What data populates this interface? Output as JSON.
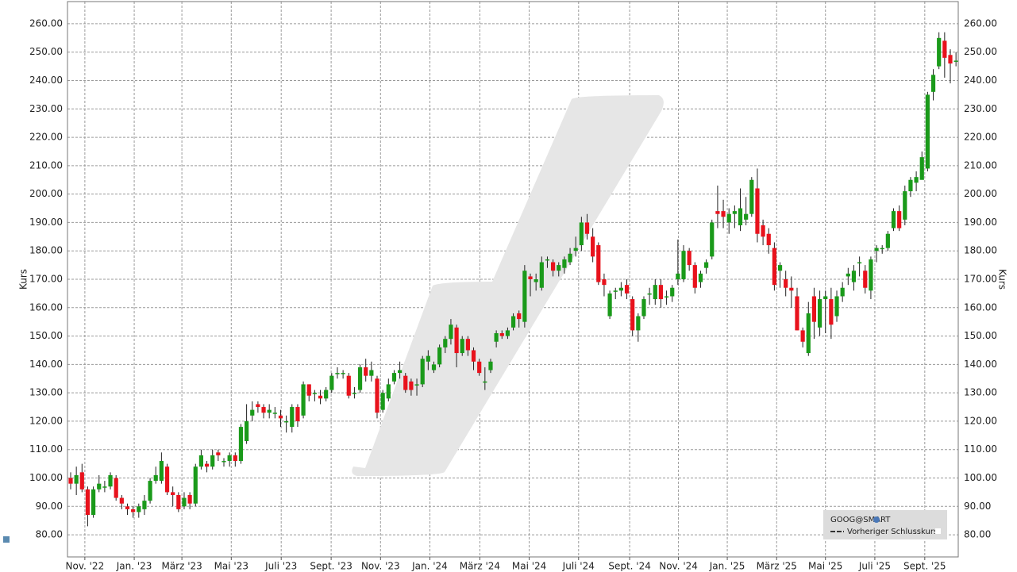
{
  "chart_data": {
    "type": "candlestick",
    "y_label": "Kurs",
    "up_color": "#1a9a1a",
    "down_color": "#e8121c",
    "grid": true,
    "legend": {
      "title": "GOOG@SMART",
      "items": [
        "Vorheriger Schlusskurs"
      ]
    },
    "ylim": [
      72.2,
      267.8
    ],
    "yticks": [
      {
        "value": 80,
        "label": "80.00"
      },
      {
        "value": 90,
        "label": "90.00"
      },
      {
        "value": 100,
        "label": "100.00"
      },
      {
        "value": 110,
        "label": "110.00"
      },
      {
        "value": 120,
        "label": "120.00"
      },
      {
        "value": 130,
        "label": "130.00"
      },
      {
        "value": 140,
        "label": "140.00"
      },
      {
        "value": 150,
        "label": "150.00"
      },
      {
        "value": 160,
        "label": "160.00"
      },
      {
        "value": 170,
        "label": "170.00"
      },
      {
        "value": 180,
        "label": "180.00"
      },
      {
        "value": 190,
        "label": "190.00"
      },
      {
        "value": 200,
        "label": "200.00"
      },
      {
        "value": 210,
        "label": "210.00"
      },
      {
        "value": 220,
        "label": "220.00"
      },
      {
        "value": 230,
        "label": "230.00"
      },
      {
        "value": 240,
        "label": "240.00"
      },
      {
        "value": 250,
        "label": "250.00"
      },
      {
        "value": 260,
        "label": "260.00"
      }
    ],
    "xlim": [
      -0.56,
      156.4
    ],
    "xticks": [
      {
        "value": 2.5,
        "label": "Nov. '22"
      },
      {
        "value": 11.2,
        "label": "Jan. '23"
      },
      {
        "value": 19.6,
        "label": "März '23"
      },
      {
        "value": 28.3,
        "label": "Mai '23"
      },
      {
        "value": 37.1,
        "label": "Juli '23"
      },
      {
        "value": 45.9,
        "label": "Sept. '23"
      },
      {
        "value": 54.6,
        "label": "Nov. '23"
      },
      {
        "value": 63.3,
        "label": "Jan. '24"
      },
      {
        "value": 72.1,
        "label": "März '24"
      },
      {
        "value": 80.8,
        "label": "Mai '24"
      },
      {
        "value": 89.5,
        "label": "Juli '24"
      },
      {
        "value": 98.5,
        "label": "Sept. '24"
      },
      {
        "value": 107.1,
        "label": "Nov. '24"
      },
      {
        "value": 115.7,
        "label": "Jan. '25"
      },
      {
        "value": 124.4,
        "label": "März '25"
      },
      {
        "value": 133,
        "label": "Mai '25"
      },
      {
        "value": 141.7,
        "label": "Juli '25"
      },
      {
        "value": 150.5,
        "label": "Sept. '25"
      }
    ],
    "x": [
      0,
      1,
      2,
      3,
      4,
      5,
      6,
      7,
      8,
      9,
      10,
      11,
      12,
      13,
      14,
      15,
      16,
      17,
      18,
      19,
      20,
      21,
      22,
      23,
      24,
      25,
      26,
      27,
      28,
      29,
      30,
      31,
      32,
      33,
      34,
      35,
      36,
      37,
      38,
      39,
      40,
      41,
      42,
      43,
      44,
      45,
      46,
      47,
      48,
      49,
      50,
      51,
      52,
      53,
      54,
      55,
      56,
      57,
      58,
      59,
      60,
      61,
      62,
      63,
      64,
      65,
      66,
      67,
      68,
      69,
      70,
      71,
      72,
      73,
      74,
      75,
      76,
      77,
      78,
      79,
      80,
      81,
      82,
      83,
      84,
      85,
      86,
      87,
      88,
      89,
      90,
      91,
      92,
      93,
      94,
      95,
      96,
      97,
      98,
      99,
      100,
      101,
      102,
      103,
      104,
      105,
      106,
      107,
      108,
      109,
      110,
      111,
      112,
      113,
      114,
      115,
      116,
      117,
      118,
      119,
      120,
      121,
      122,
      123,
      124,
      125,
      126,
      127,
      128,
      129,
      130,
      131,
      132,
      133,
      134,
      135,
      136,
      137,
      138,
      139,
      140,
      141,
      142,
      143,
      144,
      145,
      146,
      147,
      148,
      149,
      150,
      151,
      152,
      153,
      154,
      155,
      156
    ],
    "open": [
      100,
      98,
      102,
      96,
      87,
      96,
      97,
      97,
      100,
      93,
      90,
      89,
      88,
      89,
      92,
      99,
      99,
      104,
      95,
      94,
      90,
      94,
      91,
      104,
      105,
      104,
      109,
      106,
      106,
      108,
      106,
      113,
      122,
      126,
      125,
      123,
      123,
      122,
      120,
      118,
      125,
      122,
      133,
      130,
      129,
      128,
      131,
      137,
      137,
      136,
      130,
      131,
      139,
      136,
      135,
      124,
      128,
      134,
      137,
      136,
      134,
      133,
      133,
      141,
      138,
      140,
      146,
      149,
      153,
      144,
      149,
      145,
      141,
      134,
      138,
      148,
      151,
      150,
      153,
      158,
      155,
      171,
      169,
      167,
      177,
      176,
      173,
      174,
      176,
      180,
      182,
      190,
      185,
      182,
      170,
      157,
      166,
      166,
      168,
      163,
      152,
      157,
      165,
      163,
      168,
      164,
      164,
      170,
      170,
      180,
      175,
      169,
      174,
      178,
      194,
      194,
      190,
      193,
      189,
      191,
      193,
      202,
      189,
      186,
      181,
      173,
      170,
      167,
      164,
      152,
      144,
      164,
      153,
      163,
      163,
      157,
      164,
      171,
      169,
      176,
      173,
      166,
      180,
      181,
      181,
      188,
      194,
      191,
      201,
      204,
      205,
      209,
      236,
      245,
      254,
      249,
      247
    ],
    "high": [
      102,
      104,
      105,
      97,
      97,
      101,
      99,
      102,
      101,
      94,
      91,
      90,
      91,
      94,
      100,
      104,
      109,
      105,
      97,
      95,
      95,
      95,
      105,
      110,
      106,
      110,
      110,
      107,
      109,
      109,
      119,
      126,
      127,
      127,
      126,
      126,
      125,
      124,
      122,
      126,
      126,
      134,
      133,
      131,
      131,
      132,
      137,
      139,
      138,
      137,
      132,
      140,
      142,
      141,
      136,
      131,
      135,
      138,
      141,
      137,
      135,
      135,
      143,
      145,
      141,
      147,
      150,
      156,
      154,
      150,
      150,
      146,
      142,
      139,
      142,
      152,
      152,
      153,
      158,
      159,
      175,
      172,
      172,
      178,
      178,
      177,
      176,
      178,
      181,
      185,
      192,
      193,
      188,
      183,
      172,
      166,
      167,
      169,
      170,
      164,
      158,
      164,
      167,
      170,
      170,
      166,
      168,
      184,
      182,
      181,
      176,
      173,
      177,
      191,
      203,
      198,
      195,
      196,
      202,
      199,
      206,
      209,
      191,
      188,
      183,
      176,
      173,
      171,
      167,
      153,
      162,
      167,
      166,
      166,
      167,
      166,
      169,
      174,
      175,
      178,
      175,
      178,
      182,
      182,
      187,
      195,
      196,
      203,
      206,
      208,
      215,
      236,
      244,
      257,
      257,
      251,
      250
    ],
    "low": [
      96,
      94,
      95,
      83,
      86,
      95,
      95,
      96,
      92,
      89,
      87,
      86,
      86,
      87,
      91,
      98,
      98,
      94,
      90,
      88,
      89,
      89,
      90,
      103,
      102,
      103,
      106,
      104,
      104,
      104,
      105,
      112,
      120,
      123,
      121,
      121,
      121,
      118,
      116,
      116,
      118,
      121,
      127,
      127,
      126,
      127,
      130,
      135,
      135,
      128,
      128,
      130,
      134,
      134,
      121,
      123,
      127,
      133,
      135,
      130,
      129,
      129,
      132,
      138,
      137,
      139,
      144,
      147,
      139,
      143,
      143,
      138,
      136,
      131,
      137,
      146,
      149,
      149,
      152,
      153,
      153,
      164,
      166,
      166,
      174,
      171,
      171,
      172,
      175,
      178,
      180,
      184,
      176,
      168,
      164,
      156,
      163,
      164,
      163,
      150,
      148,
      156,
      161,
      161,
      160,
      161,
      162,
      168,
      169,
      173,
      165,
      167,
      172,
      177,
      188,
      188,
      186,
      188,
      187,
      189,
      192,
      183,
      182,
      179,
      166,
      167,
      164,
      160,
      152,
      146,
      143,
      149,
      150,
      151,
      149,
      155,
      162,
      168,
      166,
      171,
      165,
      163,
      176,
      179,
      180,
      187,
      187,
      189,
      199,
      201,
      206,
      208,
      233,
      244,
      241,
      239,
      245
    ],
    "close": [
      98,
      101,
      96,
      87,
      96,
      98,
      97,
      101,
      93,
      91,
      89,
      88,
      90,
      92,
      99,
      101,
      106,
      95,
      94,
      89,
      93,
      91,
      104,
      108,
      104,
      108,
      108,
      106,
      108,
      106,
      118,
      120,
      124,
      125,
      123,
      124,
      123,
      121,
      120,
      125,
      120,
      133,
      129,
      130,
      128,
      131,
      136,
      137,
      137,
      129,
      130,
      139,
      136,
      138,
      123,
      130,
      133,
      137,
      138,
      131,
      131,
      133,
      142,
      143,
      140,
      146,
      149,
      154,
      144,
      149,
      145,
      141,
      137,
      134,
      141,
      151,
      150,
      152,
      157,
      156,
      173,
      170,
      170,
      176,
      177,
      173,
      175,
      177,
      179,
      181,
      190,
      186,
      178,
      169,
      168,
      165,
      166,
      167,
      165,
      152,
      157,
      163,
      165,
      168,
      163,
      164,
      167,
      172,
      180,
      175,
      167,
      172,
      176,
      190,
      193,
      192,
      193,
      194,
      195,
      193,
      205,
      186,
      185,
      182,
      168,
      175,
      167,
      166,
      152,
      148,
      158,
      155,
      163,
      164,
      154,
      164,
      167,
      172,
      173,
      176,
      167,
      177,
      181,
      181,
      186,
      194,
      188,
      201,
      205,
      206,
      213,
      235,
      242,
      255,
      248,
      246,
      247
    ]
  }
}
